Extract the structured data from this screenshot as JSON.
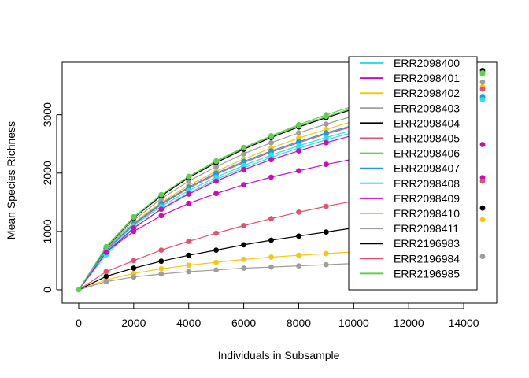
{
  "chart_data": {
    "type": "line",
    "title": "",
    "xlabel": "Individuals in Subsample",
    "ylabel": "Mean Species Richness",
    "xlim": [
      -600,
      15200
    ],
    "ylim": [
      -230,
      3900
    ],
    "x_ticks": [
      0,
      2000,
      4000,
      6000,
      8000,
      10000,
      12000,
      14000
    ],
    "x_tick_labels": [
      "0",
      "2000",
      "4000",
      "6000",
      "8000",
      "10000",
      "12000",
      "14000"
    ],
    "y_ticks": [
      0,
      1000,
      2000,
      3000
    ],
    "y_tick_labels": [
      "0",
      "1000",
      "2000",
      "3000"
    ],
    "x": [
      0,
      1000,
      2000,
      3000,
      4000,
      5000,
      6000,
      7000,
      8000,
      9000,
      10000
    ],
    "grid": false,
    "legend_position": "top-right",
    "series": [
      {
        "name": "ERR2098400",
        "color": "#28E2E5",
        "values": [
          0,
          600,
          1050,
          1390,
          1660,
          1890,
          2090,
          2270,
          2430,
          2570,
          2700
        ],
        "end_value": 3320
      },
      {
        "name": "ERR2098401",
        "color": "#CD0BBC",
        "values": [
          0,
          650,
          1000,
          1270,
          1480,
          1650,
          1800,
          1930,
          2040,
          2150,
          2240
        ],
        "end_value": 1920
      },
      {
        "name": "ERR2098402",
        "color": "#F5C710",
        "values": [
          0,
          690,
          1150,
          1500,
          1790,
          2030,
          2240,
          2430,
          2600,
          2750,
          2890
        ],
        "end_value": 3480
      },
      {
        "name": "ERR2098403",
        "color": "#9E9E9E",
        "values": [
          0,
          700,
          1190,
          1560,
          1860,
          2110,
          2330,
          2520,
          2690,
          2840,
          2980
        ],
        "end_value": 3560
      },
      {
        "name": "ERR2098404",
        "color": "#000000",
        "values": [
          0,
          720,
          1230,
          1610,
          1920,
          2180,
          2410,
          2610,
          2790,
          2950,
          3100
        ],
        "end_value": 3760
      },
      {
        "name": "ERR2098405",
        "color": "#DF536B",
        "values": [
          0,
          670,
          1120,
          1460,
          1740,
          1980,
          2180,
          2360,
          2520,
          2670,
          2800
        ],
        "end_value": 3440
      },
      {
        "name": "ERR2098406",
        "color": "#61D04F",
        "values": [
          0,
          730,
          1240,
          1630,
          1940,
          2200,
          2430,
          2630,
          2810,
          2970,
          3120
        ],
        "end_value": 3720
      },
      {
        "name": "ERR2098407",
        "color": "#2297E6",
        "values": [
          0,
          680,
          1130,
          1480,
          1760,
          2000,
          2200,
          2380,
          2540,
          2690,
          2820
        ],
        "end_value": 3300
      },
      {
        "name": "ERR2098408",
        "color": "#28E2E5",
        "values": [
          0,
          660,
          1100,
          1430,
          1700,
          1930,
          2130,
          2310,
          2470,
          2610,
          2740
        ],
        "end_value": 3260
      },
      {
        "name": "ERR2098409",
        "color": "#CD0BBC",
        "values": [
          0,
          640,
          1060,
          1380,
          1640,
          1860,
          2060,
          2230,
          2380,
          2520,
          2650
        ],
        "end_value": 2490
      },
      {
        "name": "ERR2098410",
        "color": "#F5C710",
        "values": [
          0,
          170,
          280,
          360,
          420,
          470,
          520,
          560,
          590,
          620,
          650
        ],
        "end_value": 1200
      },
      {
        "name": "ERR2098411",
        "color": "#9E9E9E",
        "values": [
          0,
          140,
          220,
          270,
          310,
          340,
          370,
          390,
          410,
          430,
          450
        ],
        "end_value": 570
      },
      {
        "name": "ERR2196983",
        "color": "#000000",
        "values": [
          0,
          230,
          370,
          490,
          590,
          680,
          770,
          850,
          920,
          990,
          1060
        ],
        "end_value": 1400
      },
      {
        "name": "ERR2196984",
        "color": "#DF536B",
        "values": [
          0,
          310,
          500,
          680,
          830,
          970,
          1100,
          1220,
          1330,
          1430,
          1520
        ],
        "end_value": 1860
      },
      {
        "name": "ERR2196985",
        "color": "#61D04F",
        "values": [
          0,
          740,
          1250,
          1630,
          1940,
          2210,
          2440,
          2640,
          2830,
          3000,
          3150
        ],
        "end_value": 3700
      }
    ]
  }
}
